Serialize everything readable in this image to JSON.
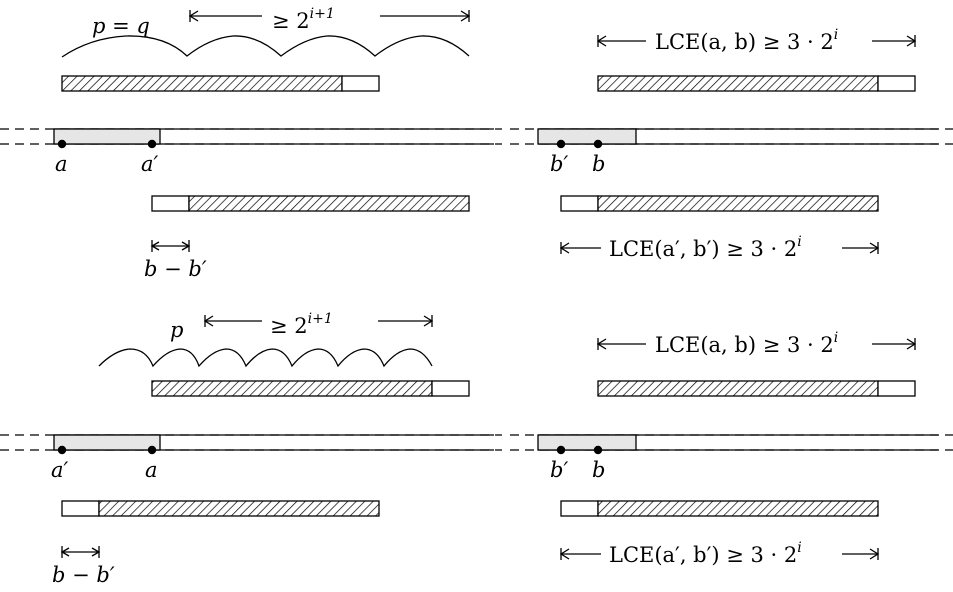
{
  "panels": [
    {
      "id": "top",
      "period_label": "p = q",
      "period_span_label": "≥ 2",
      "period_span_exp": "i+1",
      "lce_ab_label": "LCE(a, b) ≥ 3 · 2",
      "lce_ab_exp": "i",
      "lce_ab2_label": "LCE(a′, b′) ≥ 3 · 2",
      "lce_ab2_exp": "i",
      "point_left_1": "a",
      "point_left_2": "a′",
      "point_right_1": "b′",
      "point_right_2": "b",
      "diff_label": "b − b′"
    },
    {
      "id": "bottom",
      "period_label": "p",
      "period_span_label": "≥ 2",
      "period_span_exp": "i+1",
      "lce_ab_label": "LCE(a, b) ≥ 3 · 2",
      "lce_ab_exp": "i",
      "lce_ab2_label": "LCE(a′, b′) ≥ 3 · 2",
      "lce_ab2_exp": "i",
      "point_left_1": "a′",
      "point_left_2": "a",
      "point_right_1": "b′",
      "point_right_2": "b",
      "diff_label": "b − b′"
    }
  ]
}
